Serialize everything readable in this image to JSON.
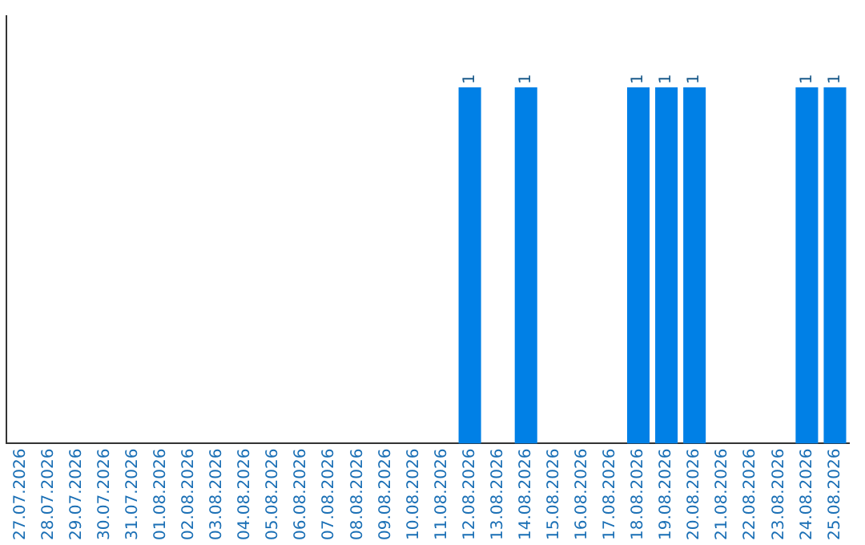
{
  "chart_data": {
    "type": "bar",
    "categories": [
      "27.07.2026",
      "28.07.2026",
      "29.07.2026",
      "30.07.2026",
      "31.07.2026",
      "01.08.2026",
      "02.08.2026",
      "03.08.2026",
      "04.08.2026",
      "05.08.2026",
      "06.08.2026",
      "07.08.2026",
      "08.08.2026",
      "09.08.2026",
      "10.08.2026",
      "11.08.2026",
      "12.08.2026",
      "13.08.2026",
      "14.08.2026",
      "15.08.2026",
      "16.08.2026",
      "17.08.2026",
      "18.08.2026",
      "19.08.2026",
      "20.08.2026",
      "21.08.2026",
      "22.08.2026",
      "23.08.2026",
      "24.08.2026",
      "25.08.2026"
    ],
    "values": [
      null,
      null,
      null,
      null,
      null,
      null,
      null,
      null,
      null,
      null,
      null,
      null,
      null,
      null,
      null,
      null,
      1,
      null,
      1,
      null,
      null,
      null,
      1,
      1,
      1,
      null,
      null,
      null,
      1,
      1
    ],
    "data_labels": true,
    "color": "#0080e6",
    "grid": false,
    "legend": false,
    "tick_labels": "x"
  }
}
